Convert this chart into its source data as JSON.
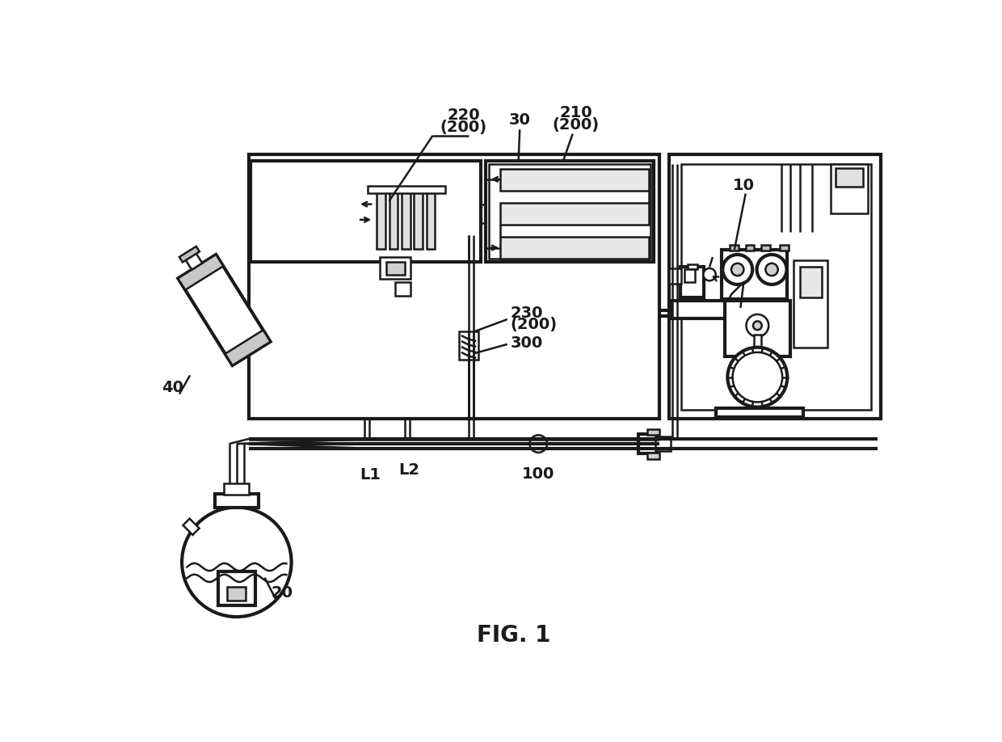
{
  "bg_color": "#ffffff",
  "line_color": "#1a1a1a",
  "lw1": 1.8,
  "lw2": 3.0,
  "lw3": 4.5,
  "fig_caption": "FIG. 1",
  "labels": {
    "220_line1": "220",
    "220_line2": "(200)",
    "210_line1": "210",
    "210_line2": "(200)",
    "30": "30",
    "10": "10",
    "230_line1": "230",
    "230_line2": "(200)",
    "300": "300",
    "100": "100",
    "L1": "L1",
    "L2": "L2",
    "40": "40",
    "20": "20"
  }
}
